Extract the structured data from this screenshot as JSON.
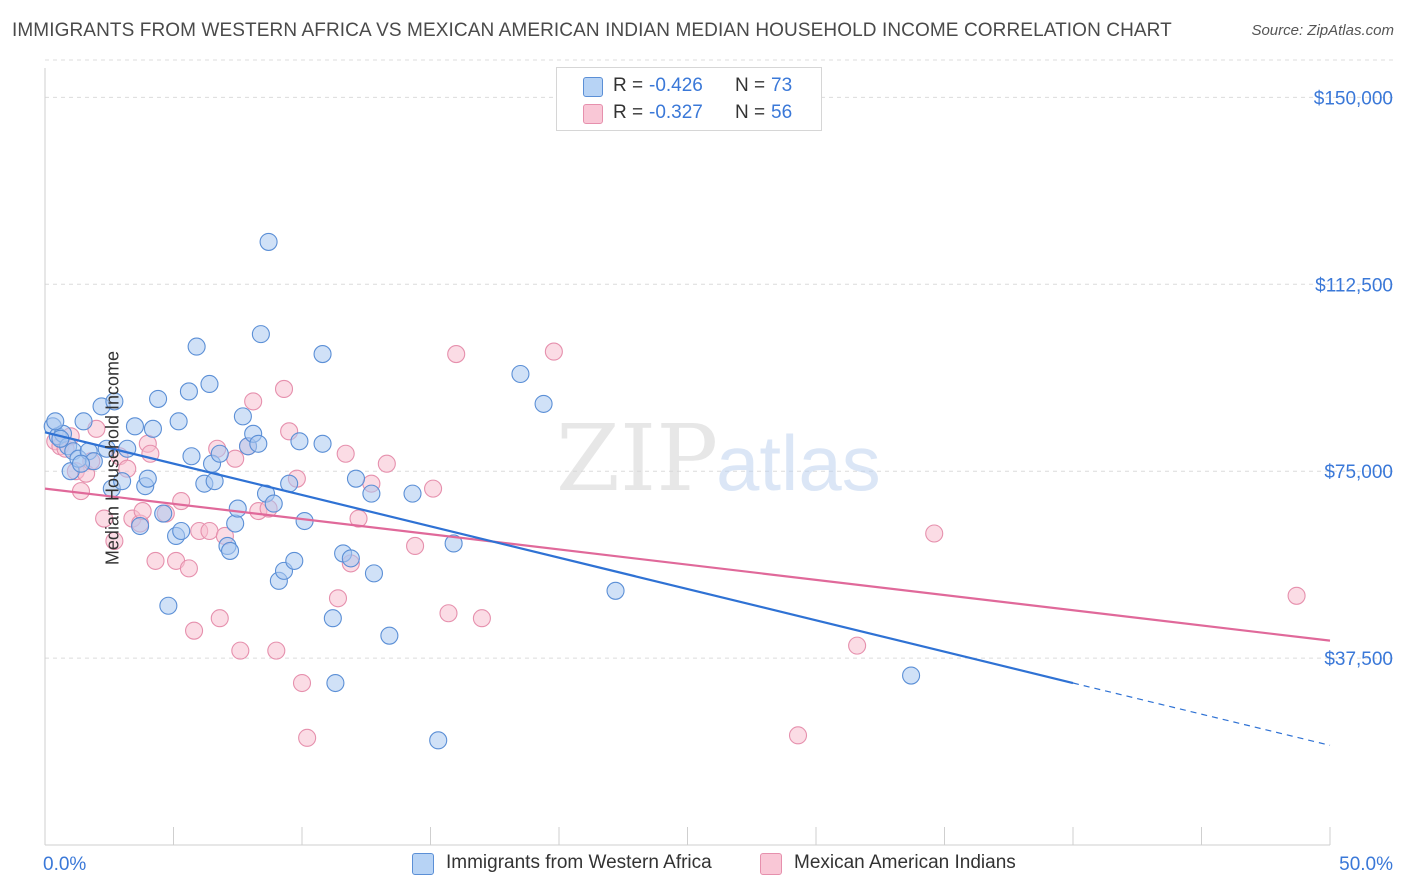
{
  "title": "IMMIGRANTS FROM WESTERN AFRICA VS MEXICAN AMERICAN INDIAN MEDIAN HOUSEHOLD INCOME CORRELATION CHART",
  "source": "Source: ZipAtlas.com",
  "watermark": {
    "zip": "ZIP",
    "atlas": "atlas"
  },
  "stats": {
    "r_label": "R =",
    "n_label": "N =",
    "blue": {
      "r": "-0.426",
      "n": "73"
    },
    "pink": {
      "r": "-0.327",
      "n": "56"
    }
  },
  "colors": {
    "blue_fill": "#a9c8f0",
    "blue_stroke": "#5b8fd6",
    "blue_line": "#2f72d4",
    "pink_fill": "#f7bfd0",
    "pink_stroke": "#e690ad",
    "pink_line": "#e0699a",
    "tick_label": "#3a78d8",
    "grid": "#dcdcdc"
  },
  "chart_data": {
    "type": "scatter",
    "title": "IMMIGRANTS FROM WESTERN AFRICA VS MEXICAN AMERICAN INDIAN MEDIAN HOUSEHOLD INCOME CORRELATION CHART",
    "xlabel": "",
    "ylabel": "Median Household Income",
    "xlim": [
      0,
      50
    ],
    "ylim": [
      0,
      157500
    ],
    "x_tick_labels": [
      "0.0%",
      "50.0%"
    ],
    "y_ticks": [
      37500,
      75000,
      112500,
      150000
    ],
    "y_tick_labels": [
      "$37,500",
      "$75,000",
      "$112,500",
      "$150,000"
    ],
    "grid": true,
    "legend_position": "bottom-center",
    "series": [
      {
        "name": "Immigrants from Western Africa",
        "color": "blue",
        "points": [
          [
            0.3,
            84000
          ],
          [
            0.5,
            82000
          ],
          [
            0.7,
            82500
          ],
          [
            0.9,
            80000
          ],
          [
            1.0,
            75000
          ],
          [
            1.1,
            79000
          ],
          [
            1.3,
            77500
          ],
          [
            1.5,
            85000
          ],
          [
            1.7,
            79000
          ],
          [
            1.9,
            77000
          ],
          [
            2.2,
            88000
          ],
          [
            2.4,
            79500
          ],
          [
            2.7,
            89000
          ],
          [
            2.6,
            71500
          ],
          [
            3.0,
            73000
          ],
          [
            3.2,
            79500
          ],
          [
            3.5,
            84000
          ],
          [
            3.7,
            64000
          ],
          [
            3.9,
            72000
          ],
          [
            4.0,
            73500
          ],
          [
            4.2,
            83500
          ],
          [
            4.4,
            89500
          ],
          [
            4.6,
            66500
          ],
          [
            4.8,
            48000
          ],
          [
            5.1,
            62000
          ],
          [
            5.2,
            85000
          ],
          [
            5.3,
            63000
          ],
          [
            5.6,
            91000
          ],
          [
            5.7,
            78000
          ],
          [
            5.9,
            100000
          ],
          [
            6.2,
            72500
          ],
          [
            6.4,
            92500
          ],
          [
            6.5,
            76500
          ],
          [
            6.6,
            73000
          ],
          [
            6.8,
            78500
          ],
          [
            7.1,
            60000
          ],
          [
            7.2,
            59000
          ],
          [
            7.4,
            64500
          ],
          [
            7.5,
            67500
          ],
          [
            7.7,
            86000
          ],
          [
            7.9,
            80000
          ],
          [
            8.1,
            82500
          ],
          [
            8.3,
            80500
          ],
          [
            8.4,
            102500
          ],
          [
            8.6,
            70500
          ],
          [
            8.7,
            121000
          ],
          [
            8.9,
            68500
          ],
          [
            9.1,
            53000
          ],
          [
            9.3,
            55000
          ],
          [
            9.5,
            72500
          ],
          [
            9.7,
            57000
          ],
          [
            9.9,
            81000
          ],
          [
            10.1,
            65000
          ],
          [
            10.8,
            98500
          ],
          [
            10.8,
            80500
          ],
          [
            11.2,
            45500
          ],
          [
            11.3,
            32500
          ],
          [
            11.6,
            58500
          ],
          [
            11.9,
            57500
          ],
          [
            12.1,
            73500
          ],
          [
            12.7,
            70500
          ],
          [
            12.8,
            54500
          ],
          [
            13.4,
            42000
          ],
          [
            14.3,
            70500
          ],
          [
            15.3,
            21000
          ],
          [
            15.9,
            60500
          ],
          [
            18.5,
            94500
          ],
          [
            19.4,
            88500
          ],
          [
            22.2,
            51000
          ],
          [
            33.7,
            34000
          ],
          [
            0.4,
            85000
          ],
          [
            0.6,
            81500
          ],
          [
            1.4,
            76500
          ]
        ]
      },
      {
        "name": "Mexican American Indians",
        "color": "pink",
        "points": [
          [
            0.4,
            81000
          ],
          [
            0.6,
            80000
          ],
          [
            0.8,
            79500
          ],
          [
            1.0,
            82000
          ],
          [
            1.2,
            75000
          ],
          [
            1.4,
            71000
          ],
          [
            1.6,
            74500
          ],
          [
            1.8,
            77000
          ],
          [
            2.0,
            83500
          ],
          [
            2.3,
            65500
          ],
          [
            2.7,
            61000
          ],
          [
            2.9,
            78000
          ],
          [
            3.2,
            75500
          ],
          [
            3.4,
            65500
          ],
          [
            3.7,
            64500
          ],
          [
            3.8,
            67000
          ],
          [
            4.0,
            80500
          ],
          [
            4.1,
            78500
          ],
          [
            4.3,
            57000
          ],
          [
            4.7,
            66500
          ],
          [
            5.1,
            57000
          ],
          [
            5.3,
            69000
          ],
          [
            5.6,
            55500
          ],
          [
            5.8,
            43000
          ],
          [
            6.0,
            63000
          ],
          [
            6.4,
            63000
          ],
          [
            6.7,
            79500
          ],
          [
            6.8,
            45500
          ],
          [
            7.0,
            62000
          ],
          [
            7.4,
            77500
          ],
          [
            7.6,
            39000
          ],
          [
            7.9,
            80000
          ],
          [
            8.1,
            89000
          ],
          [
            8.3,
            67000
          ],
          [
            8.7,
            67500
          ],
          [
            9.0,
            39000
          ],
          [
            9.3,
            91500
          ],
          [
            9.5,
            83000
          ],
          [
            9.8,
            73500
          ],
          [
            10.0,
            32500
          ],
          [
            10.2,
            21500
          ],
          [
            11.4,
            49500
          ],
          [
            11.7,
            78500
          ],
          [
            11.9,
            56500
          ],
          [
            12.2,
            65500
          ],
          [
            12.7,
            72500
          ],
          [
            13.3,
            76500
          ],
          [
            14.4,
            60000
          ],
          [
            15.1,
            71500
          ],
          [
            15.7,
            46500
          ],
          [
            16.0,
            98500
          ],
          [
            17.0,
            45500
          ],
          [
            19.8,
            99000
          ],
          [
            29.3,
            22000
          ],
          [
            31.6,
            40000
          ],
          [
            34.6,
            62500
          ],
          [
            48.7,
            50000
          ]
        ]
      }
    ],
    "trend_lines": [
      {
        "series": "Immigrants from Western Africa",
        "x": [
          0,
          40
        ],
        "y": [
          82800,
          32500
        ],
        "dashed_to": [
          50,
          20000
        ]
      },
      {
        "series": "Mexican American Indians",
        "x": [
          0,
          50
        ],
        "y": [
          71500,
          41000
        ]
      }
    ]
  }
}
